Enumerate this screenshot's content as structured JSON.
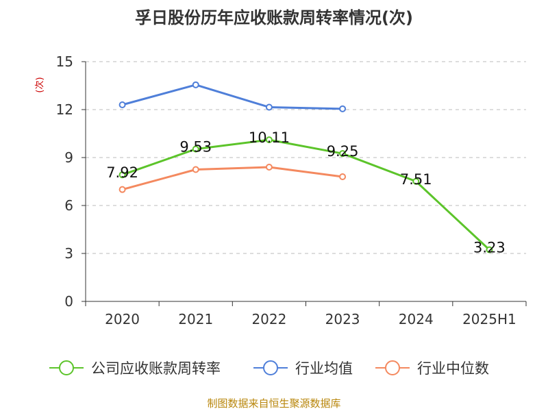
{
  "chart_data": {
    "type": "line",
    "title": "孚日股份历年应收账款周转率情况(次)",
    "ylabel": "(次)",
    "xlabel": "",
    "categories": [
      "2020",
      "2021",
      "2022",
      "2023",
      "2024",
      "2025H1"
    ],
    "ylim": [
      0,
      15
    ],
    "yticks": [
      0,
      3,
      6,
      9,
      12,
      15
    ],
    "grid": true,
    "legend_position": "bottom",
    "series": [
      {
        "name": "公司应收账款周转率",
        "color": "#5cc42a",
        "values": [
          7.92,
          9.53,
          10.11,
          9.25,
          7.51,
          3.23
        ],
        "labels": [
          "7.92",
          "9.53",
          "10.11",
          "9.25",
          "7.51",
          "3.23"
        ],
        "show_labels": true
      },
      {
        "name": "行业均值",
        "color": "#4f7fd9",
        "values": [
          12.3,
          13.55,
          12.15,
          12.05,
          null,
          null
        ],
        "show_labels": false
      },
      {
        "name": "行业中位数",
        "color": "#f4895f",
        "values": [
          7.0,
          8.25,
          8.4,
          7.8,
          null,
          null
        ],
        "show_labels": false
      }
    ]
  },
  "source": "制图数据来自恒生聚源数据库"
}
